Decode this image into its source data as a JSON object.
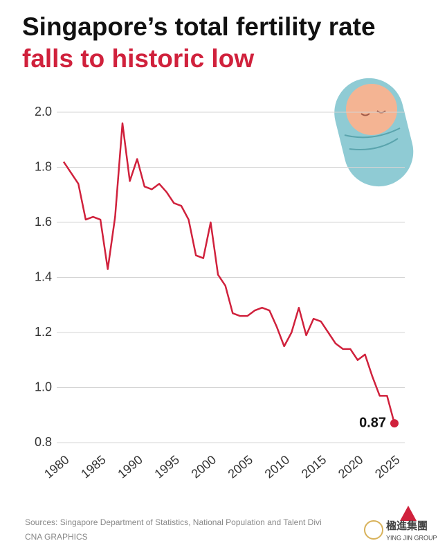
{
  "chart_data": {
    "type": "line",
    "title": "Singapore’s total fertility rate",
    "title_highlight": "falls to historic low",
    "x": [
      1980,
      1981,
      1982,
      1983,
      1984,
      1985,
      1986,
      1987,
      1988,
      1989,
      1990,
      1991,
      1992,
      1993,
      1994,
      1995,
      1996,
      1997,
      1998,
      1999,
      2000,
      2001,
      2002,
      2003,
      2004,
      2005,
      2006,
      2007,
      2008,
      2009,
      2010,
      2011,
      2012,
      2013,
      2014,
      2015,
      2016,
      2017,
      2018,
      2019,
      2020,
      2021,
      2022,
      2023,
      2024,
      2025
    ],
    "series": [
      {
        "color": "#d0213c",
        "values": [
          1.82,
          1.78,
          1.74,
          1.61,
          1.62,
          1.61,
          1.43,
          1.62,
          1.96,
          1.75,
          1.83,
          1.73,
          1.72,
          1.74,
          1.71,
          1.67,
          1.66,
          1.61,
          1.48,
          1.47,
          1.6,
          1.41,
          1.37,
          1.27,
          1.26,
          1.26,
          1.28,
          1.29,
          1.28,
          1.22,
          1.15,
          1.2,
          1.29,
          1.19,
          1.25,
          1.24,
          1.2,
          1.16,
          1.14,
          1.14,
          1.1,
          1.12,
          1.04,
          0.97,
          0.97,
          0.87
        ]
      }
    ],
    "xlim": [
      1980,
      2025
    ],
    "xticks": [
      1980,
      1985,
      1990,
      1995,
      2000,
      2005,
      2010,
      2015,
      2020,
      2025
    ],
    "ylim": [
      0.8,
      2.0
    ],
    "yticks": [
      0.8,
      {
        "value": 1,
        "label": "1.0"
      },
      1.2,
      1.4,
      1.6,
      1.8,
      {
        "value": 2,
        "label": "2.0"
      }
    ],
    "grid": true,
    "source": "Sources: Singapore Department of Statistics, National Population and Talent Divi",
    "credit": "CNA GRAPHICS",
    "watermark_name": "楹進集團",
    "watermark_subtitle": "YING JIN GROUP"
  }
}
